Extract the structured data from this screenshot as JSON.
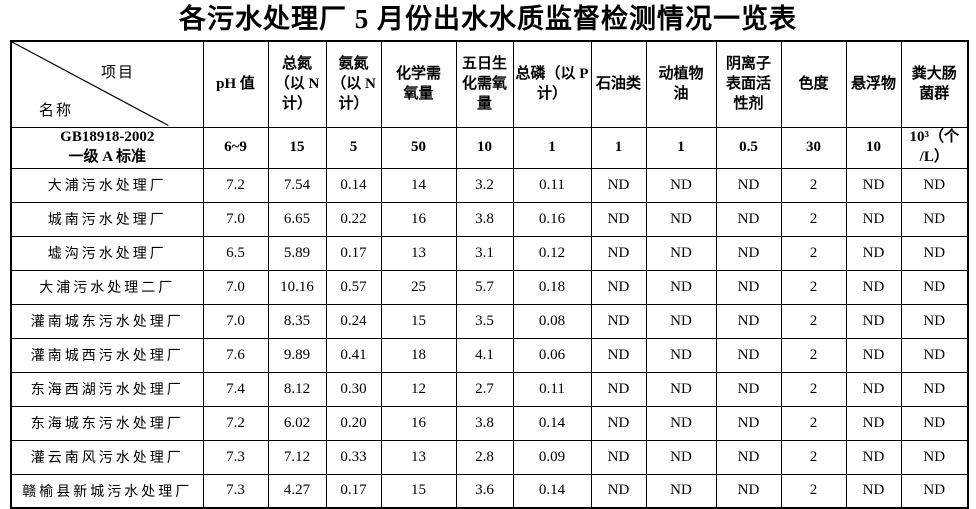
{
  "page": {
    "title": "各污水处理厂 5 月份出水水质监督检测情况一览表",
    "background_color": "#ffffff",
    "text_color": "#000000",
    "border_color": "#000000"
  },
  "table": {
    "corner": {
      "top_right_label": "项目",
      "bottom_left_label": "名称"
    },
    "column_headers": [
      "pH 值",
      "总氮\n（以 N\n计）",
      "氨氮\n（以 N\n计）",
      "化学需\n氧量",
      "五日生\n化需氧\n量",
      "总磷（以 P\n计）",
      "石油类",
      "动植物\n油",
      "阴离子\n表面活\n性剂",
      "色度",
      "悬浮物",
      "粪大肠\n菌群"
    ],
    "standard_row": {
      "label": "GB18918-2002\n一级 A 标准",
      "values": [
        "6~9",
        "15",
        "5",
        "50",
        "10",
        "1",
        "1",
        "1",
        "0.5",
        "30",
        "10",
        "10³（个\n/L）"
      ]
    },
    "rows": [
      {
        "name": "大浦污水处理厂",
        "values": [
          "7.2",
          "7.54",
          "0.14",
          "14",
          "3.2",
          "0.11",
          "ND",
          "ND",
          "ND",
          "2",
          "ND",
          "ND"
        ]
      },
      {
        "name": "城南污水处理厂",
        "values": [
          "7.0",
          "6.65",
          "0.22",
          "16",
          "3.8",
          "0.16",
          "ND",
          "ND",
          "ND",
          "2",
          "ND",
          "ND"
        ]
      },
      {
        "name": "墟沟污水处理厂",
        "values": [
          "6.5",
          "5.89",
          "0.17",
          "13",
          "3.1",
          "0.12",
          "ND",
          "ND",
          "ND",
          "2",
          "ND",
          "ND"
        ]
      },
      {
        "name": "大浦污水处理二厂",
        "values": [
          "7.0",
          "10.16",
          "0.57",
          "25",
          "5.7",
          "0.18",
          "ND",
          "ND",
          "ND",
          "2",
          "ND",
          "ND"
        ]
      },
      {
        "name": "灌南城东污水处理厂",
        "values": [
          "7.0",
          "8.35",
          "0.24",
          "15",
          "3.5",
          "0.08",
          "ND",
          "ND",
          "ND",
          "2",
          "ND",
          "ND"
        ]
      },
      {
        "name": "灌南城西污水处理厂",
        "values": [
          "7.6",
          "9.89",
          "0.41",
          "18",
          "4.1",
          "0.06",
          "ND",
          "ND",
          "ND",
          "2",
          "ND",
          "ND"
        ]
      },
      {
        "name": "东海西湖污水处理厂",
        "values": [
          "7.4",
          "8.12",
          "0.30",
          "12",
          "2.7",
          "0.11",
          "ND",
          "ND",
          "ND",
          "2",
          "ND",
          "ND"
        ]
      },
      {
        "name": "东海城东污水处理厂",
        "values": [
          "7.2",
          "6.02",
          "0.20",
          "16",
          "3.8",
          "0.14",
          "ND",
          "ND",
          "ND",
          "2",
          "ND",
          "ND"
        ]
      },
      {
        "name": "灌云南风污水处理厂",
        "values": [
          "7.3",
          "7.12",
          "0.33",
          "13",
          "2.8",
          "0.09",
          "ND",
          "ND",
          "ND",
          "2",
          "ND",
          "ND"
        ]
      },
      {
        "name": "赣榆县新城污水处理厂",
        "values": [
          "7.3",
          "4.27",
          "0.17",
          "15",
          "3.6",
          "0.14",
          "ND",
          "ND",
          "ND",
          "2",
          "ND",
          "ND"
        ]
      }
    ]
  }
}
